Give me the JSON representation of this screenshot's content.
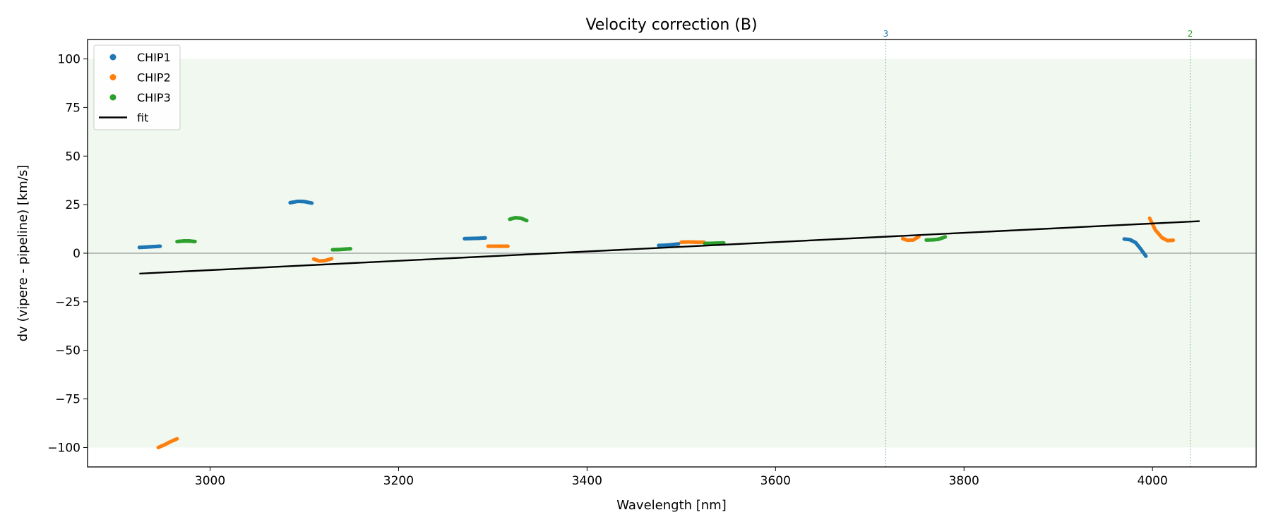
{
  "chart_data": {
    "type": "scatter",
    "title": "Velocity correction (B)",
    "xlabel": "Wavelength [nm]",
    "ylabel": "dv (vipere - pipeline) [km/s]",
    "xlim": [
      2870,
      4110
    ],
    "ylim": [
      -110,
      110
    ],
    "xticks": [
      3000,
      3200,
      3400,
      3600,
      3800,
      4000
    ],
    "yticks": [
      100,
      75,
      50,
      25,
      0,
      -25,
      -50,
      -75,
      -100
    ],
    "xtick_labels": [
      "3000",
      "3200",
      "3400",
      "3600",
      "3800",
      "4000"
    ],
    "ytick_labels": [
      "100",
      "75",
      "50",
      "25",
      "0",
      "−25",
      "−50",
      "−75",
      "−100"
    ],
    "shaded_band": {
      "y": [
        -100,
        100
      ],
      "color": "#2ca02c"
    },
    "zero_line": 0,
    "colors": {
      "CHIP1": "#1f77b4",
      "CHIP2": "#ff7f0e",
      "CHIP3": "#2ca02c",
      "fit": "#000000"
    },
    "legend": {
      "placement": "top-left",
      "entries": [
        {
          "label": "CHIP1",
          "kind": "marker",
          "color": "#1f77b4"
        },
        {
          "label": "CHIP2",
          "kind": "marker",
          "color": "#ff7f0e"
        },
        {
          "label": "CHIP3",
          "kind": "marker",
          "color": "#2ca02c"
        },
        {
          "label": "fit",
          "kind": "line",
          "color": "#000000"
        }
      ]
    },
    "series": [
      {
        "name": "CHIP1",
        "color": "#1f77b4",
        "segments": [
          [
            [
              2925,
              3.0
            ],
            [
              2933,
              3.2
            ],
            [
              2940,
              3.4
            ],
            [
              2947,
              3.6
            ]
          ],
          [
            [
              3085,
              26.0
            ],
            [
              3093,
              26.7
            ],
            [
              3100,
              26.6
            ],
            [
              3108,
              25.8
            ]
          ],
          [
            [
              3270,
              7.5
            ],
            [
              3278,
              7.6
            ],
            [
              3285,
              7.7
            ],
            [
              3292,
              7.9
            ]
          ],
          [
            [
              3476,
              4.0
            ],
            [
              3483,
              4.1
            ],
            [
              3490,
              4.4
            ],
            [
              3497,
              4.8
            ]
          ],
          [
            [
              3970,
              7.3
            ],
            [
              3976,
              7.0
            ],
            [
              3982,
              5.5
            ],
            [
              3987,
              2.5
            ],
            [
              3993,
              -1.5
            ]
          ]
        ]
      },
      {
        "name": "CHIP2",
        "color": "#ff7f0e",
        "segments": [
          [
            [
              2945,
              -100.0
            ],
            [
              2952,
              -98.5
            ],
            [
              2958,
              -97.0
            ],
            [
              2965,
              -95.5
            ]
          ],
          [
            [
              3110,
              -3.0
            ],
            [
              3116,
              -4.0
            ],
            [
              3122,
              -3.8
            ],
            [
              3129,
              -2.8
            ]
          ],
          [
            [
              3295,
              3.6
            ],
            [
              3303,
              3.6
            ],
            [
              3310,
              3.6
            ],
            [
              3316,
              3.6
            ]
          ],
          [
            [
              3500,
              5.7
            ],
            [
              3508,
              5.8
            ],
            [
              3516,
              5.7
            ],
            [
              3524,
              5.7
            ]
          ],
          [
            [
              3735,
              7.5
            ],
            [
              3740,
              6.7
            ],
            [
              3746,
              6.8
            ],
            [
              3752,
              8.5
            ]
          ],
          [
            [
              3997,
              18.0
            ],
            [
              4003,
              12.0
            ],
            [
              4010,
              8.0
            ],
            [
              4016,
              6.5
            ],
            [
              4022,
              6.7
            ]
          ]
        ]
      },
      {
        "name": "CHIP3",
        "color": "#2ca02c",
        "segments": [
          [
            [
              2965,
              6.0
            ],
            [
              2972,
              6.3
            ],
            [
              2978,
              6.3
            ],
            [
              2984,
              6.0
            ]
          ],
          [
            [
              3130,
              1.8
            ],
            [
              3137,
              1.9
            ],
            [
              3143,
              2.1
            ],
            [
              3149,
              2.3
            ]
          ],
          [
            [
              3318,
              17.5
            ],
            [
              3324,
              18.3
            ],
            [
              3330,
              18.0
            ],
            [
              3336,
              16.8
            ]
          ],
          [
            [
              3525,
              5.0
            ],
            [
              3532,
              5.1
            ],
            [
              3539,
              5.2
            ],
            [
              3545,
              5.3
            ]
          ],
          [
            [
              3760,
              6.8
            ],
            [
              3767,
              6.9
            ],
            [
              3773,
              7.2
            ],
            [
              3780,
              8.4
            ]
          ]
        ]
      }
    ],
    "fit": {
      "name": "fit",
      "x": [
        2925,
        4050
      ],
      "y": [
        -10.5,
        16.5
      ]
    },
    "annotations": [
      {
        "x": 3717,
        "label": "3",
        "color": "#1f77b4"
      },
      {
        "x": 4040,
        "label": "2",
        "color": "#2ca02c"
      }
    ]
  }
}
